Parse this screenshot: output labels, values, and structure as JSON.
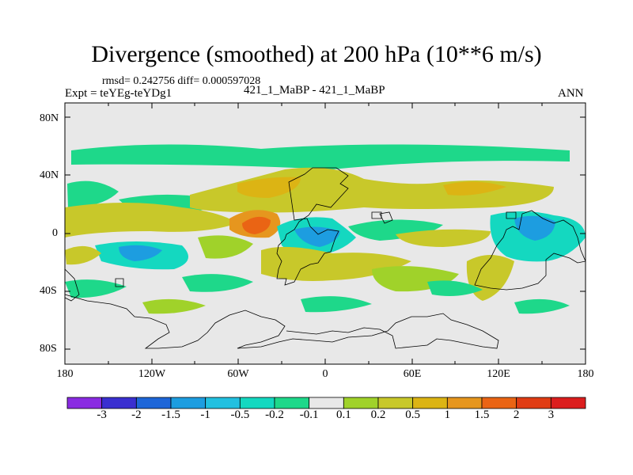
{
  "title": "Divergence (smoothed) at 200 hPa (10**6 m/s)",
  "stats": "rmsd= 0.242756 diff= 0.000597028",
  "left_label": "Expt = teYEg-teYDg1",
  "center_label": "421_1_MaBP - 421_1_MaBP",
  "season": "ANN",
  "lat_ticks": [
    "80N",
    "40N",
    "0",
    "40S",
    "80S"
  ],
  "lon_ticks": [
    "180",
    "120W",
    "60W",
    "0",
    "60E",
    "120E",
    "180"
  ],
  "colorbar": {
    "labels": [
      "-3",
      "-2",
      "-1.5",
      "-1",
      "-0.5",
      "-0.2",
      "-0.1",
      "0.1",
      "0.2",
      "0.5",
      "1",
      "1.5",
      "2",
      "3"
    ],
    "colors": [
      "#8a2be2",
      "#3a2fd0",
      "#1e66d8",
      "#1d9de0",
      "#22c0e0",
      "#14d8c0",
      "#1ed88a",
      "#e8e8e8",
      "#a0d22a",
      "#c8c82a",
      "#dcb414",
      "#e6961e",
      "#ea6414",
      "#e03c14",
      "#dc1e1e"
    ]
  },
  "field_colors": {
    "neutral": "#e8e8e8",
    "neg1": "#1ed88a",
    "neg2": "#14d8c0",
    "neg3": "#1d9de0",
    "pos1": "#a0d22a",
    "pos2": "#c8c82a",
    "pos3": "#dcb414",
    "pos4": "#e6961e",
    "pos5": "#ea6414"
  }
}
